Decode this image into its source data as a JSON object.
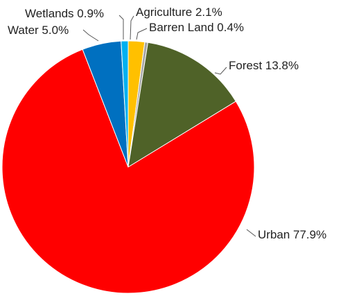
{
  "chart_data": {
    "type": "pie",
    "title": "",
    "slices": [
      {
        "name": "Agriculture",
        "value": 2.1,
        "label": "Agriculture 2.1%",
        "color": "#FFC000"
      },
      {
        "name": "Barren Land",
        "value": 0.4,
        "label": "Barren Land 0.4%",
        "color": "#A5A5A5"
      },
      {
        "name": "Forest",
        "value": 13.8,
        "label": "Forest 13.8%",
        "color": "#4F6228"
      },
      {
        "name": "Urban",
        "value": 77.9,
        "label": "Urban 77.9%",
        "color": "#FF0000"
      },
      {
        "name": "Water",
        "value": 5.0,
        "label": "Water 5.0%",
        "color": "#0070C0"
      },
      {
        "name": "Wetlands",
        "value": 0.9,
        "label": "Wetlands 0.9%",
        "color": "#00B0F0"
      }
    ],
    "start_angle": "12 o'clock",
    "direction": "clockwise",
    "legend": "none"
  }
}
